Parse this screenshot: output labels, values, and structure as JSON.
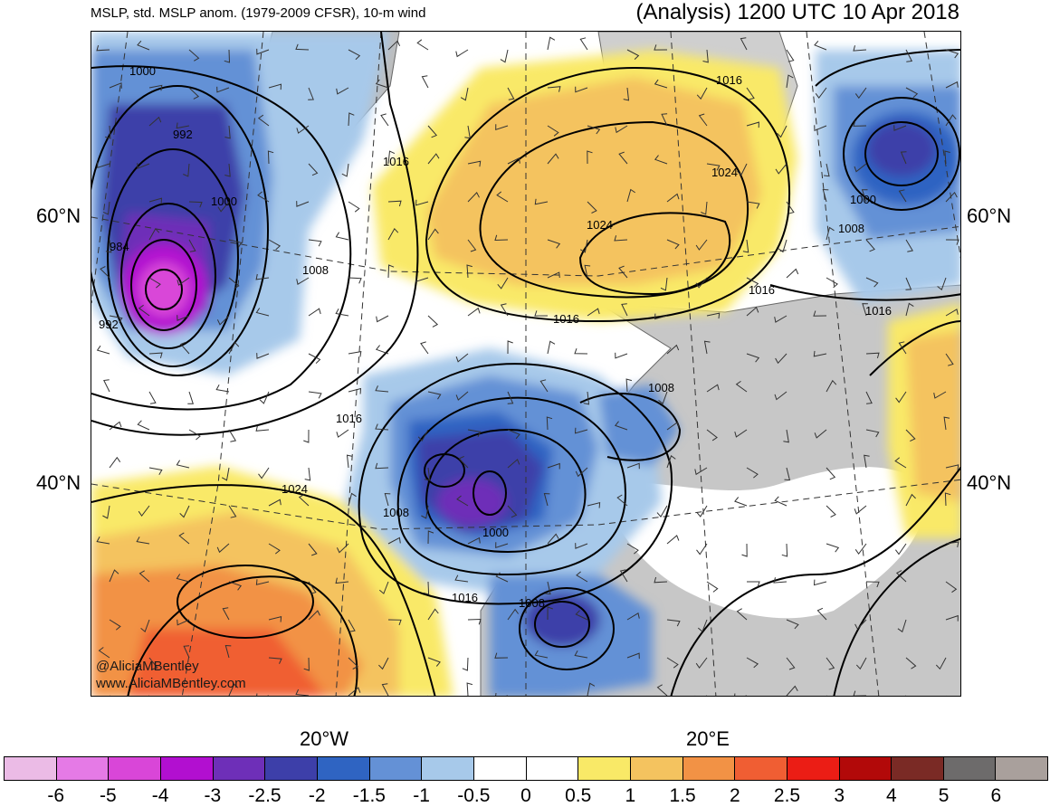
{
  "header": {
    "left_title": "MSLP, std. MSLP anom. (1979-2009 CFSR), 10-m wind",
    "right_title": "(Analysis) 1200 UTC 10 Apr 2018"
  },
  "axes": {
    "lat_labels": [
      "60°N",
      "40°N"
    ],
    "lon_labels": [
      "20°W",
      "20°E"
    ]
  },
  "credit": {
    "handle": "@AliciaMBentley",
    "url": "www.AliciaMBentley.com"
  },
  "isobar_labels": [
    "1000",
    "992",
    "1000",
    "984",
    "992",
    "1008",
    "1016",
    "1016",
    "1024",
    "1024",
    "1016",
    "1016",
    "1016",
    "1008",
    "1000",
    "1008",
    "1016",
    "1024",
    "1008",
    "1000",
    "1016",
    "1008"
  ],
  "colorbar": {
    "colors": [
      "#ebbbe6",
      "#e57ae6",
      "#d946d8",
      "#b20fd0",
      "#6e2fb8",
      "#3d3fa9",
      "#2f64c2",
      "#6491d6",
      "#a7c9ea",
      "#ffffff",
      "#ffffff",
      "#f9e967",
      "#f4c35f",
      "#f29245",
      "#f05e33",
      "#eb1d15",
      "#b20909",
      "#7a2a25",
      "#6d6b6b",
      "#a9a09c"
    ],
    "ticks": [
      "-6",
      "-5",
      "-4",
      "-3",
      "-2.5",
      "-2",
      "-1.5",
      "-1",
      "-0.5",
      "0",
      "0.5",
      "1",
      "1.5",
      "2",
      "2.5",
      "3",
      "4",
      "5",
      "6"
    ]
  }
}
